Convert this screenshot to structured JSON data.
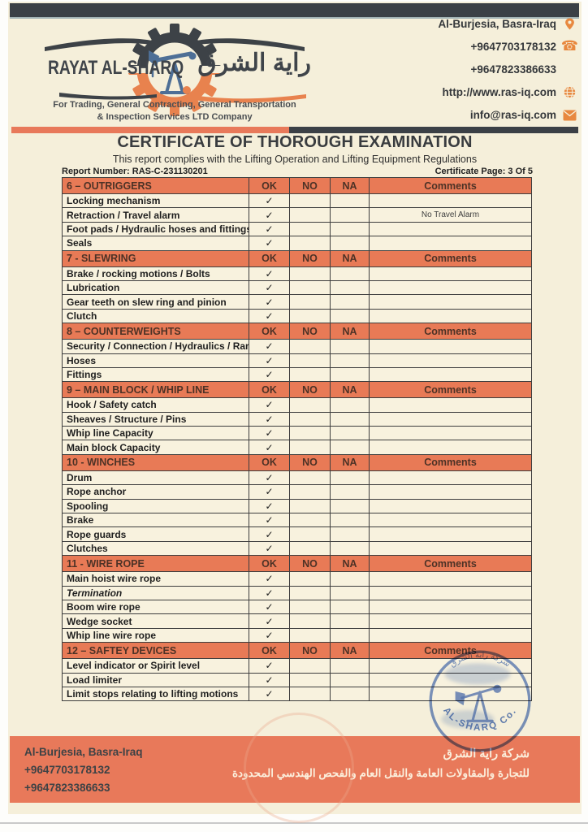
{
  "header": {
    "logo": {
      "name_en": "RAYAT AL-SHARQ",
      "name_ar": "راية الشرق",
      "tagline_line1": "For Trading, General Contracting, General Transportation",
      "tagline_line2": "& Inspection Services LTD Company"
    },
    "contacts": [
      {
        "text": "Al-Burjesia, Basra-Iraq",
        "icon": "location-pin-icon"
      },
      {
        "text": "+9647703178132",
        "icon": "phone-icon"
      },
      {
        "text": "+9647823386633",
        "icon": "none"
      },
      {
        "text": "http://www.ras-iq.com",
        "icon": "globe-icon"
      },
      {
        "text": "info@ras-iq.com",
        "icon": "envelope-icon"
      }
    ]
  },
  "document": {
    "title": "CERTIFICATE OF THOROUGH EXAMINATION",
    "subtitle": "This report complies with the Lifting Operation and Lifting Equipment Regulations",
    "report_number_label": "Report Number: RAS-C-231130201",
    "certificate_page_label": "Certificate Page: 3 Of 5"
  },
  "table": {
    "columns": [
      "OK",
      "NO",
      "NA",
      "Comments"
    ],
    "check_glyph": "✓",
    "sections": [
      {
        "title": "6 – OUTRIGGERS",
        "rows": [
          {
            "label": "Locking mechanism",
            "ok": true,
            "comment": ""
          },
          {
            "label": "Retraction / Travel alarm",
            "ok": true,
            "comment": "No Travel Alarm"
          },
          {
            "label": "Foot pads / Hydraulic hoses and fittings",
            "ok": true,
            "comment": ""
          },
          {
            "label": "Seals",
            "ok": true,
            "comment": ""
          }
        ]
      },
      {
        "title": "7 - SLEWRING",
        "rows": [
          {
            "label": "Brake / rocking motions / Bolts",
            "ok": true,
            "comment": ""
          },
          {
            "label": "Lubrication",
            "ok": true,
            "comment": ""
          },
          {
            "label": "Gear teeth on slew ring and pinion",
            "ok": true,
            "comment": ""
          },
          {
            "label": "Clutch",
            "ok": true,
            "comment": ""
          }
        ]
      },
      {
        "title": "8 – COUNTERWEIGHTS",
        "rows": [
          {
            "label": "Security / Connection / Hydraulics / Rams",
            "ok": true,
            "comment": ""
          },
          {
            "label": "Hoses",
            "ok": true,
            "comment": ""
          },
          {
            "label": "Fittings",
            "ok": true,
            "comment": ""
          }
        ]
      },
      {
        "title": "9 – MAIN BLOCK / WHIP LINE",
        "rows": [
          {
            "label": "Hook /  Safety catch",
            "ok": true,
            "comment": ""
          },
          {
            "label": "Sheaves / Structure / Pins",
            "ok": true,
            "comment": ""
          },
          {
            "label": "Whip line Capacity",
            "ok": true,
            "comment": ""
          },
          {
            "label": "Main block Capacity",
            "ok": true,
            "comment": ""
          }
        ]
      },
      {
        "title": "10 - WINCHES",
        "rows": [
          {
            "label": "Drum",
            "ok": true,
            "comment": ""
          },
          {
            "label": "Rope anchor",
            "ok": true,
            "comment": ""
          },
          {
            "label": "Spooling",
            "ok": true,
            "comment": ""
          },
          {
            "label": "Brake",
            "ok": true,
            "comment": ""
          },
          {
            "label": "Rope guards",
            "ok": true,
            "comment": ""
          },
          {
            "label": "Clutches",
            "ok": true,
            "comment": ""
          }
        ]
      },
      {
        "title": "11 - WIRE ROPE",
        "rows": [
          {
            "label": "Main hoist wire rope",
            "ok": true,
            "comment": ""
          },
          {
            "label": "Termination",
            "ok": true,
            "comment": "",
            "italic": true
          },
          {
            "label": "Boom wire rope",
            "ok": true,
            "comment": ""
          },
          {
            "label": "Wedge socket",
            "ok": true,
            "comment": ""
          },
          {
            "label": "Whip line wire rope",
            "ok": true,
            "comment": ""
          }
        ]
      },
      {
        "title": "12 – SAFTEY DEVICES",
        "rows": [
          {
            "label": "Level indicator or Spirit level",
            "ok": true,
            "comment": ""
          },
          {
            "label": "Load limiter",
            "ok": true,
            "comment": ""
          },
          {
            "label": "Limit stops relating to lifting motions",
            "ok": true,
            "comment": ""
          }
        ]
      }
    ]
  },
  "stamp": {
    "top_text_ar": "شركة راية الشرق",
    "bottom_text": "AL-SHARQ Co."
  },
  "footer": {
    "address": "Al-Burjesia, Basra-Iraq",
    "phone1": "+9647703178132",
    "phone2": "+9647823386633",
    "company_ar_line1": "شركة راية الشرق",
    "company_ar_line2": "للتجارة والمقاولات العامة والنقل العام والفحص الهندسي المحدودة"
  },
  "colors": {
    "accent_salmon": "#E8795A",
    "table_header": "#E87A56",
    "dark_bar": "#3b4046",
    "paper": "#F5EFDA",
    "icon_orange": "#E8883F",
    "stamp_blue": "#4e73c2"
  }
}
